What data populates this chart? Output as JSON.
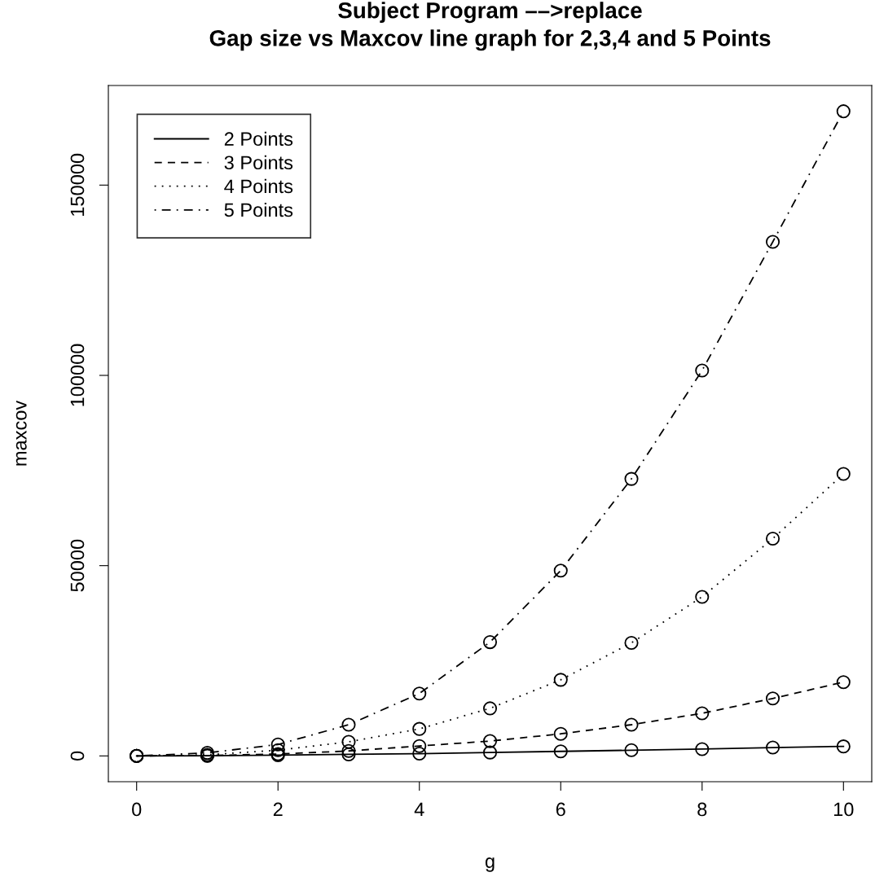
{
  "chart_data": {
    "type": "line",
    "title": "Subject Program ––>replace\nGap size vs Maxcov line graph for 2,3,4 and 5 Points",
    "xlabel": "g",
    "ylabel": "maxcov",
    "x": [
      0,
      1,
      2,
      3,
      4,
      5,
      6,
      7,
      8,
      9,
      10
    ],
    "series": [
      {
        "name": "2 Points",
        "color": "#000000",
        "line_style": "solid",
        "values": [
          0,
          50,
          200,
          400,
          600,
          900,
          1200,
          1500,
          1800,
          2200,
          2500
        ]
      },
      {
        "name": "3 Points",
        "color": "#000000",
        "line_style": "dashed",
        "values": [
          0,
          100,
          500,
          1300,
          2600,
          3900,
          5800,
          8200,
          11200,
          15100,
          19400
        ]
      },
      {
        "name": "4 Points",
        "color": "#000000",
        "line_style": "dotted",
        "values": [
          0,
          300,
          1500,
          3700,
          7100,
          12500,
          20000,
          29700,
          41800,
          57100,
          74100
        ]
      },
      {
        "name": "5 Points",
        "color": "#000000",
        "line_style": "dashdot",
        "values": [
          0,
          800,
          3000,
          8200,
          16400,
          29900,
          48700,
          72800,
          101300,
          135100,
          169400
        ]
      }
    ],
    "marker": "circle",
    "xlim": [
      -0.4,
      10.4
    ],
    "ylim": [
      -6776,
      176176
    ],
    "xticks": [
      0,
      2,
      4,
      6,
      8,
      10
    ],
    "yticks": [
      0,
      50000,
      100000,
      150000
    ],
    "grid": false,
    "legend": "top left"
  }
}
